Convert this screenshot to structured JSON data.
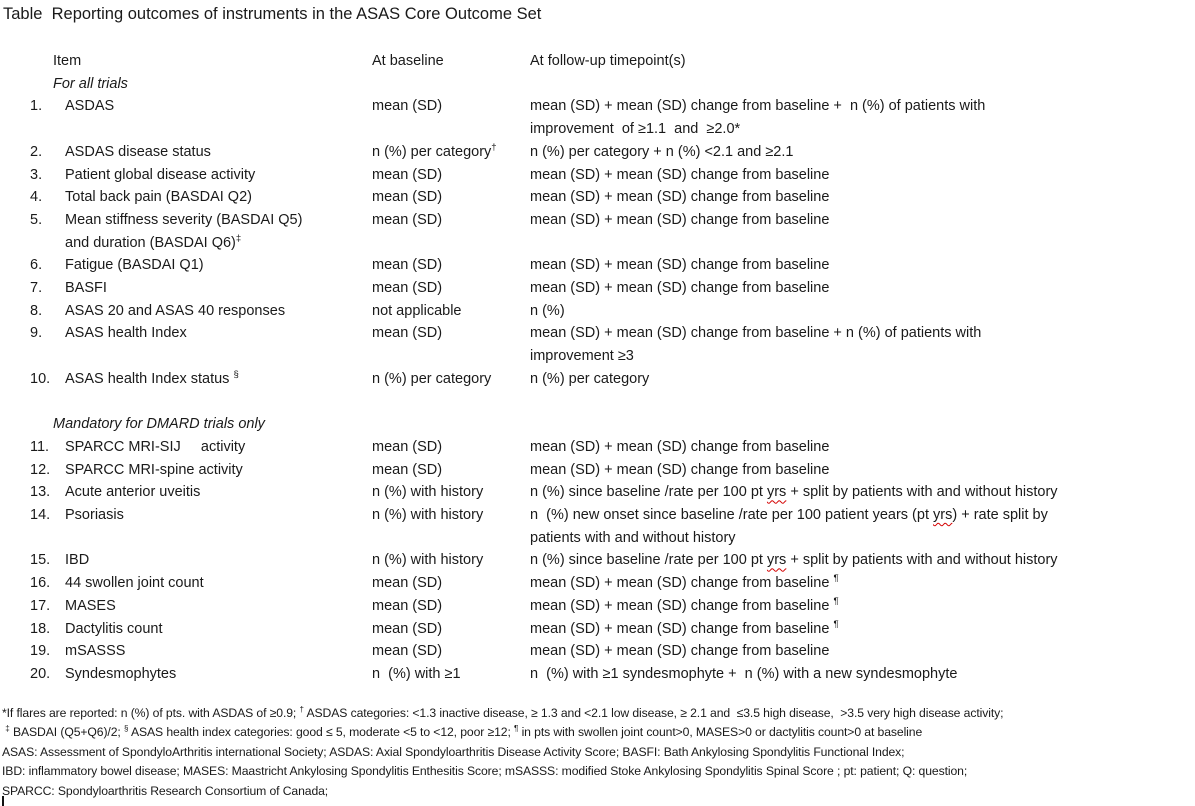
{
  "title": "Table  Reporting outcomes of instruments in the ASAS Core Outcome Set",
  "colors": {
    "background": "#ffffff",
    "text": "#1a1a1a",
    "spellcheck_underline": "#d40000"
  },
  "table": {
    "headers": {
      "item": "Item",
      "baseline": "At baseline",
      "followup": "At follow-up timepoint(s)"
    },
    "sections": [
      {
        "label": "For all trials",
        "rows": [
          {
            "num": "1.",
            "item": "ASDAS",
            "baseline": "mean (SD)",
            "followup": "mean (SD) + mean (SD) change from baseline +  n (%) of patients with\nimprovement  of ≥1.1  and  ≥2.0*"
          },
          {
            "num": "2.",
            "item": "ASDAS disease status",
            "baseline": "n (%) per category^{†}",
            "followup": "n (%) per category + n (%) <2.1 and ≥2.1"
          },
          {
            "num": "3.",
            "item": "Patient global disease activity",
            "baseline": "mean (SD)",
            "followup": "mean (SD) + mean (SD) change from baseline"
          },
          {
            "num": "4.",
            "item": "Total back pain (BASDAI Q2)",
            "baseline": "mean (SD)",
            "followup": "mean (SD) + mean (SD) change from baseline"
          },
          {
            "num": "5.",
            "item": "Mean stiffness severity (BASDAI Q5)\nand duration (BASDAI Q6)^{‡}",
            "baseline": "mean (SD)",
            "followup": "mean (SD) + mean (SD) change from baseline"
          },
          {
            "num": "6.",
            "item": "Fatigue (BASDAI Q1)",
            "baseline": "mean (SD)",
            "followup": "mean (SD) + mean (SD) change from baseline"
          },
          {
            "num": "7.",
            "item": "BASFI",
            "baseline": "mean (SD)",
            "followup": "mean (SD) + mean (SD) change from baseline"
          },
          {
            "num": "8.",
            "item": "ASAS 20 and ASAS 40 responses",
            "baseline": "not applicable",
            "followup": "n (%)"
          },
          {
            "num": "9.",
            "item": "ASAS health Index",
            "baseline": "mean (SD)",
            "followup": "mean (SD) + mean (SD) change from baseline + n (%) of patients with\nimprovement ≥3"
          },
          {
            "num": "10.",
            "item": "ASAS health Index status ^{§}",
            "baseline": "n (%) per category",
            "followup": "n (%) per category"
          }
        ]
      },
      {
        "label": "Mandatory for DMARD trials only",
        "rows": [
          {
            "num": "11.",
            "item": "SPARCC MRI-SIJ     activity",
            "baseline": "mean (SD)",
            "followup": "mean (SD) + mean (SD) change from baseline"
          },
          {
            "num": "12.",
            "item": "SPARCC MRI-spine activity",
            "baseline": "mean (SD)",
            "followup": "mean (SD) + mean (SD) change from baseline"
          },
          {
            "num": "13.",
            "item": "Acute anterior uveitis",
            "baseline": "n (%) with history",
            "followup": "n (%) since baseline /rate per 100 pt ~{yrs} + split by patients with and without history"
          },
          {
            "num": "14.",
            "item": "Psoriasis",
            "baseline": "n (%) with history",
            "followup": "n  (%) new onset since baseline /rate per 100 patient years (pt ~{yrs}) + rate split by\npatients with and without history"
          },
          {
            "num": "15.",
            "item": "IBD",
            "baseline": "n (%) with history",
            "followup": "n (%) since baseline /rate per 100 pt ~{yrs} + split by patients with and without history"
          },
          {
            "num": "16.",
            "item": "44 swollen joint count",
            "baseline": "mean (SD)",
            "followup": "mean (SD) + mean (SD) change from baseline ^{¶}"
          },
          {
            "num": "17.",
            "item": "MASES",
            "baseline": "mean (SD)",
            "followup": "mean (SD) + mean (SD) change from baseline ^{¶}"
          },
          {
            "num": "18.",
            "item": "Dactylitis count",
            "baseline": "mean (SD)",
            "followup": "mean (SD) + mean (SD) change from baseline ^{¶}"
          },
          {
            "num": "19.",
            "item": "mSASSS",
            "baseline": "mean (SD)",
            "followup": "mean (SD) + mean (SD) change from baseline"
          },
          {
            "num": "20.",
            "item": "Syndesmophytes",
            "baseline": "n  (%) with ≥1",
            "followup": "n  (%) with ≥1 syndesmophyte +  n (%) with a new syndesmophyte"
          }
        ]
      }
    ]
  },
  "footnotes": [
    "*If flares are reported: n (%) of pts. with ASDAS of ≥0.9; ^{†} ASDAS categories: <1.3 inactive disease, ≥ 1.3 and <2.1 low disease, ≥ 2.1 and  ≤3.5 high disease,  >3.5 very high disease activity;",
    " ^{‡} BASDAI (Q5+Q6)/2; ^{§} ASAS health index categories: good ≤ 5, moderate <5 to <12, poor ≥12; ^{¶} in pts with swollen joint count>0, MASES>0 or dactylitis count>0 at baseline",
    "ASAS: Assessment of SpondyloArthritis international Society; ASDAS: Axial Spondyloarthritis Disease Activity Score; BASFI: Bath Ankylosing Spondylitis Functional Index;",
    "IBD: inflammatory bowel disease; MASES: Maastricht Ankylosing Spondylitis Enthesitis Score; mSASSS: modified Stoke Ankylosing Spondylitis Spinal Score ; pt: patient; Q: question;",
    "SPARCC: Spondyloarthritis Research Consortium of Canada;"
  ]
}
